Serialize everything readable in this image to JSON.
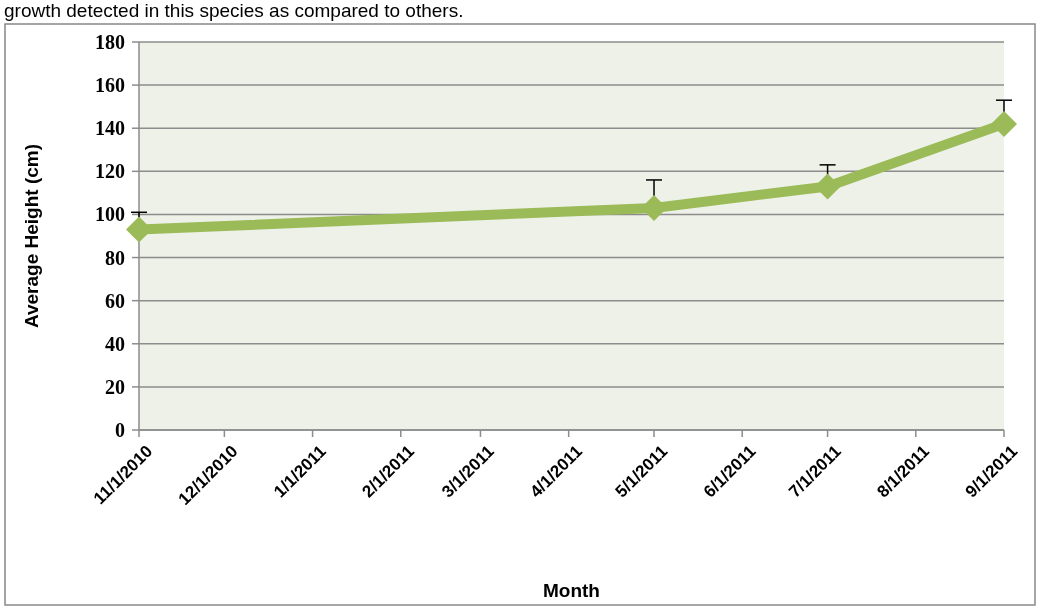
{
  "chart_data": {
    "type": "line",
    "annotations": [
      "growth detected in this species as compared to others."
    ],
    "xlabel": "Month",
    "ylabel": "Average Height (cm)",
    "x": [
      "2010-11-01",
      "2011-05-01",
      "2011-07-01",
      "2011-09-01"
    ],
    "series": [
      {
        "color": "#9bbb59",
        "values": [
          93,
          103,
          113,
          142
        ],
        "errors": [
          [
            93,
            101
          ],
          [
            103,
            116
          ],
          [
            113,
            123
          ],
          [
            142,
            153
          ]
        ]
      }
    ],
    "xlim": [
      "2010-11-01",
      "2011-09-01"
    ],
    "xticks": [
      {
        "value": "2010-11-01",
        "label": "11/1/2010"
      },
      {
        "value": "2010-12-01",
        "label": "12/1/2010"
      },
      {
        "value": "2011-01-01",
        "label": "1/1/2011"
      },
      {
        "value": "2011-02-01",
        "label": "2/1/2011"
      },
      {
        "value": "2011-03-01",
        "label": "3/1/2011"
      },
      {
        "value": "2011-04-01",
        "label": "4/1/2011"
      },
      {
        "value": "2011-05-01",
        "label": "5/1/2011"
      },
      {
        "value": "2011-06-01",
        "label": "6/1/2011"
      },
      {
        "value": "2011-07-01",
        "label": "7/1/2011"
      },
      {
        "value": "2011-08-01",
        "label": "8/1/2011"
      },
      {
        "value": "2011-09-01",
        "label": "9/1/2011"
      }
    ],
    "ylim": [
      0,
      180
    ],
    "yticks": [
      0,
      20,
      40,
      60,
      80,
      100,
      120,
      140,
      160,
      180
    ],
    "grid": "y",
    "marker": "diamond",
    "line_style": "solid"
  }
}
